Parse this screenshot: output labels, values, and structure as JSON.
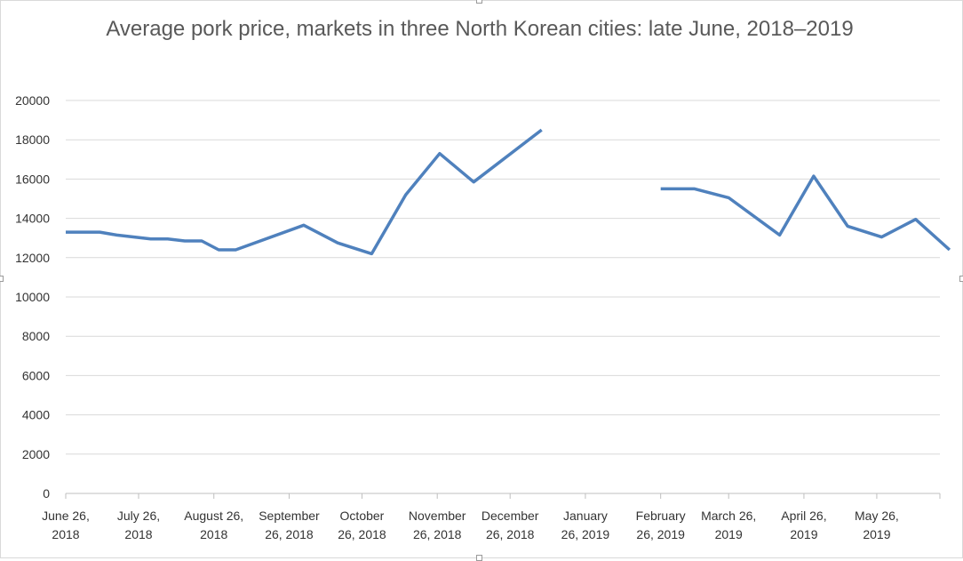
{
  "chart_data": {
    "type": "line",
    "title": "Average pork price, markets in three North Korean cities: late June, 2018–2019",
    "xlabel": "",
    "ylabel": "",
    "ylim": [
      0,
      20000
    ],
    "y_ticks": [
      0,
      2000,
      4000,
      6000,
      8000,
      10000,
      12000,
      14000,
      16000,
      18000,
      20000
    ],
    "x_range_days": [
      0,
      360
    ],
    "x_ticks": [
      {
        "day": 0,
        "lines": [
          "June 26,",
          "2018"
        ]
      },
      {
        "day": 30,
        "lines": [
          "July 26,",
          "2018"
        ]
      },
      {
        "day": 61,
        "lines": [
          "August 26,",
          "2018"
        ]
      },
      {
        "day": 92,
        "lines": [
          "September",
          "26, 2018"
        ]
      },
      {
        "day": 122,
        "lines": [
          "October",
          "26, 2018"
        ]
      },
      {
        "day": 153,
        "lines": [
          "November",
          "26, 2018"
        ]
      },
      {
        "day": 183,
        "lines": [
          "December",
          "26, 2018"
        ]
      },
      {
        "day": 214,
        "lines": [
          "January",
          "26, 2019"
        ]
      },
      {
        "day": 245,
        "lines": [
          "February",
          "26, 2019"
        ]
      },
      {
        "day": 273,
        "lines": [
          "March 26,",
          "2019"
        ]
      },
      {
        "day": 304,
        "lines": [
          "April 26,",
          "2019"
        ]
      },
      {
        "day": 334,
        "lines": [
          "May 26,",
          "2019"
        ]
      }
    ],
    "grid": true,
    "legend": "none",
    "series": [
      {
        "color": "#4f81bd",
        "segments": [
          [
            {
              "x": 0,
              "y": 13300
            },
            {
              "x": 14,
              "y": 13300
            },
            {
              "x": 21,
              "y": 13150
            },
            {
              "x": 35,
              "y": 12950
            },
            {
              "x": 42,
              "y": 12950
            },
            {
              "x": 49,
              "y": 12850
            },
            {
              "x": 56,
              "y": 12850
            },
            {
              "x": 63,
              "y": 12400
            },
            {
              "x": 70,
              "y": 12400
            },
            {
              "x": 98,
              "y": 13650
            },
            {
              "x": 112,
              "y": 12750
            },
            {
              "x": 126,
              "y": 12200
            },
            {
              "x": 140,
              "y": 15200
            },
            {
              "x": 154,
              "y": 17300
            },
            {
              "x": 168,
              "y": 15850
            },
            {
              "x": 196,
              "y": 18500
            }
          ],
          [
            {
              "x": 245,
              "y": 15500
            },
            {
              "x": 259,
              "y": 15500
            },
            {
              "x": 273,
              "y": 15050
            },
            {
              "x": 294,
              "y": 13150
            },
            {
              "x": 308,
              "y": 16150
            },
            {
              "x": 322,
              "y": 13600
            },
            {
              "x": 336,
              "y": 13050
            },
            {
              "x": 350,
              "y": 13950
            },
            {
              "x": 364,
              "y": 12400
            }
          ]
        ]
      }
    ]
  }
}
